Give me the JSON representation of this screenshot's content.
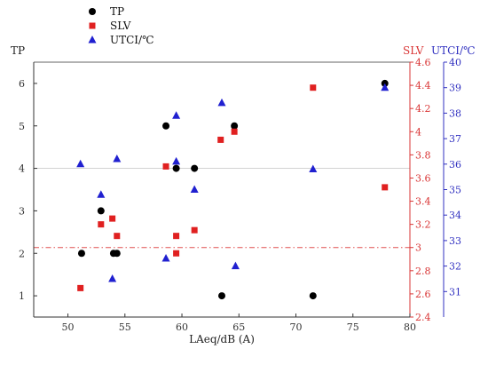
{
  "chart_data": {
    "type": "scatter",
    "xlabel": "LAeq/dB (A)",
    "xlim": [
      47,
      80
    ],
    "xticks": [
      50,
      55,
      60,
      65,
      70,
      75,
      80
    ],
    "y_axes": [
      {
        "id": "tp",
        "label": "TP",
        "side": "left",
        "lim": [
          0.5,
          6.5
        ],
        "ticks": [
          1,
          2,
          3,
          4,
          5,
          6
        ],
        "color": "#333333"
      },
      {
        "id": "slv",
        "label": "SLV",
        "side": "right",
        "lim": [
          2.4,
          4.6
        ],
        "ticks": [
          2.4,
          2.6,
          2.8,
          3.0,
          3.2,
          3.4,
          3.6,
          3.8,
          4.0,
          4.2,
          4.4,
          4.6
        ],
        "color": "#d93434"
      },
      {
        "id": "utci",
        "label": "UTCI/℃",
        "side": "right",
        "lim": [
          30,
          40
        ],
        "ticks": [
          31,
          32,
          33,
          34,
          35,
          36,
          37,
          38,
          39,
          40
        ],
        "color": "#3030c0"
      }
    ],
    "legend_position": "top-left",
    "series": [
      {
        "name": "TP",
        "axis": "tp",
        "marker": "circle",
        "color": "#000000",
        "points": [
          [
            51.2,
            2
          ],
          [
            52.9,
            3
          ],
          [
            54.0,
            2
          ],
          [
            54.3,
            2
          ],
          [
            58.6,
            5
          ],
          [
            59.5,
            4
          ],
          [
            61.1,
            4
          ],
          [
            63.5,
            1
          ],
          [
            64.6,
            5
          ],
          [
            71.5,
            1
          ],
          [
            77.8,
            6
          ]
        ]
      },
      {
        "name": "SLV",
        "axis": "slv",
        "marker": "square",
        "color": "#e02020",
        "points": [
          [
            51.1,
            2.65
          ],
          [
            52.9,
            3.2
          ],
          [
            53.9,
            3.25
          ],
          [
            54.3,
            3.1
          ],
          [
            58.6,
            3.7
          ],
          [
            59.5,
            2.95
          ],
          [
            59.5,
            3.1
          ],
          [
            61.1,
            3.15
          ],
          [
            63.4,
            3.93
          ],
          [
            64.6,
            4.0
          ],
          [
            71.5,
            4.38
          ],
          [
            77.8,
            3.52
          ]
        ]
      },
      {
        "name": "UTCI/℃",
        "axis": "utci",
        "marker": "triangle",
        "color": "#2020d0",
        "points": [
          [
            51.1,
            36.0
          ],
          [
            52.9,
            34.8
          ],
          [
            53.9,
            31.5
          ],
          [
            54.3,
            36.2
          ],
          [
            58.6,
            32.3
          ],
          [
            59.5,
            36.1
          ],
          [
            59.5,
            37.9
          ],
          [
            61.1,
            35.0
          ],
          [
            63.5,
            38.4
          ],
          [
            64.7,
            32.0
          ],
          [
            71.5,
            35.8
          ],
          [
            77.8,
            39.0
          ]
        ]
      }
    ],
    "reference_lines": [
      {
        "axis": "slv",
        "value": 3.0,
        "style": "dash-dot",
        "color": "#e05050"
      },
      {
        "axis": "tp",
        "value": 4.0,
        "style": "solid",
        "color": "#cccccc"
      }
    ]
  }
}
